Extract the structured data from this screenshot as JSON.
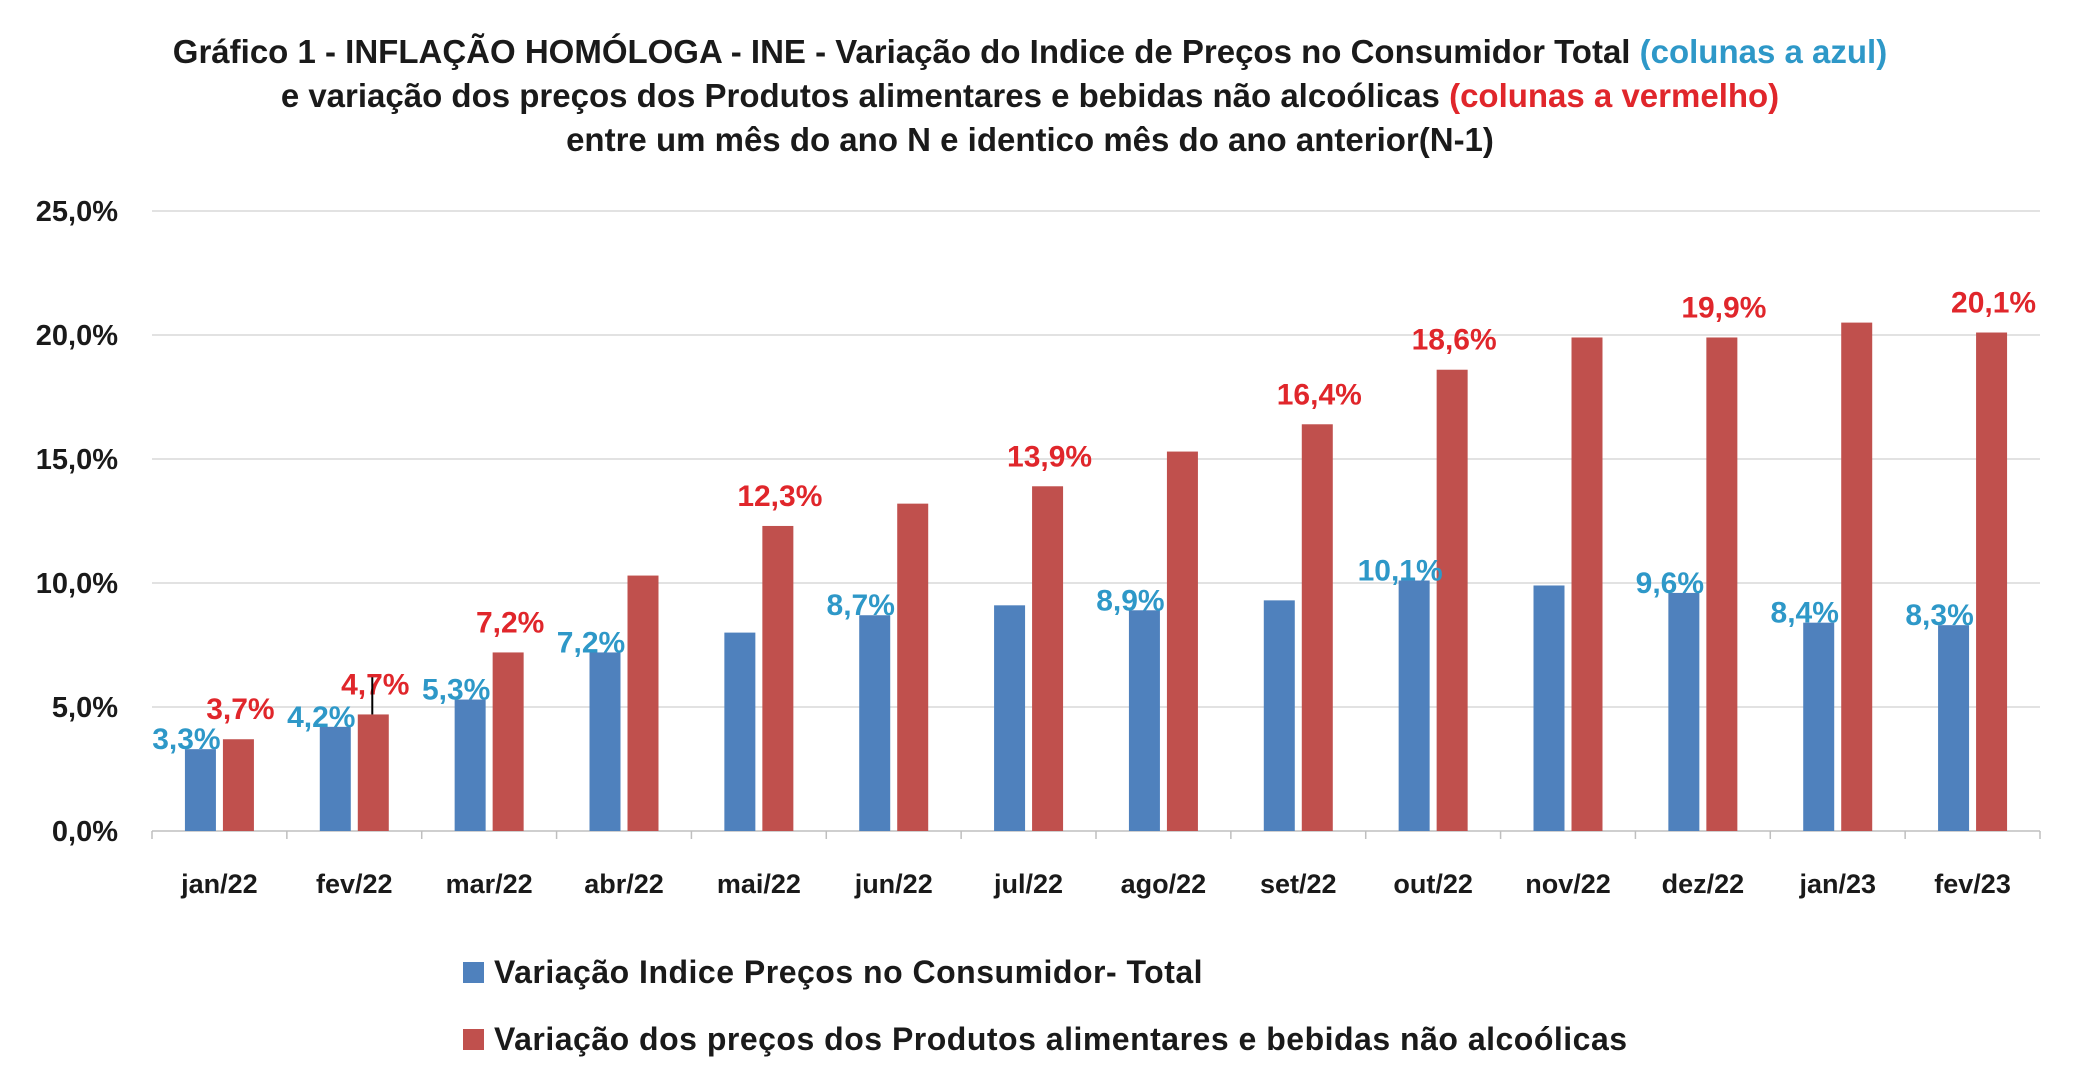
{
  "title": {
    "part1": "Gráfico 1 - INFLAÇÃO HOMÓLOGA - INE - Variação do Indice de Preços no Consumidor Total ",
    "part2": "(colunas a azul)",
    "part3": " e variação dos preços dos Produtos alimentares e bebidas não alcoólicas ",
    "part4": "(colunas a vermelho)",
    "part5": "entre um mês do ano N e identico mês do ano anterior(N-1)"
  },
  "chart_data": {
    "type": "bar",
    "categories": [
      "jan/22",
      "fev/22",
      "mar/22",
      "abr/22",
      "mai/22",
      "jun/22",
      "jul/22",
      "ago/22",
      "set/22",
      "out/22",
      "nov/22",
      "dez/22",
      "jan/23",
      "fev/23"
    ],
    "series": [
      {
        "name": "Variação Indice Preços no Consumidor- Total",
        "color": "#4f81bd",
        "label_color": "#2e98c8",
        "values": [
          3.3,
          4.2,
          5.3,
          7.2,
          8.0,
          8.7,
          9.1,
          8.9,
          9.3,
          10.1,
          9.9,
          9.6,
          8.4,
          8.3
        ],
        "data_labels": [
          "3,3%",
          "4,2%",
          "5,3%",
          "7,2%",
          null,
          "8,7%",
          null,
          "8,9%",
          null,
          "10,1%",
          null,
          "9,6%",
          "8,4%",
          "8,3%"
        ]
      },
      {
        "name": "Variação dos preços dos Produtos alimentares e bebidas não alcoólicas",
        "color": "#c0504d",
        "label_color": "#e0262b",
        "values": [
          3.7,
          4.7,
          7.2,
          10.3,
          12.3,
          13.2,
          13.9,
          15.3,
          16.4,
          18.6,
          19.9,
          19.9,
          20.5,
          20.1
        ],
        "data_labels": [
          "3,7%",
          "4,7%",
          "7,2%",
          null,
          "12,3%",
          null,
          "13,9%",
          null,
          "16,4%",
          "18,6%",
          null,
          "19,9%",
          null,
          "20,1%"
        ]
      }
    ],
    "ylim": [
      0,
      25
    ],
    "yticks": [
      0,
      5,
      10,
      15,
      20,
      25
    ],
    "ytick_labels": [
      "0,0%",
      "5,0%",
      "10,0%",
      "15,0%",
      "20,0%",
      "25,0%"
    ],
    "grid": true,
    "legend_position": "bottom"
  }
}
